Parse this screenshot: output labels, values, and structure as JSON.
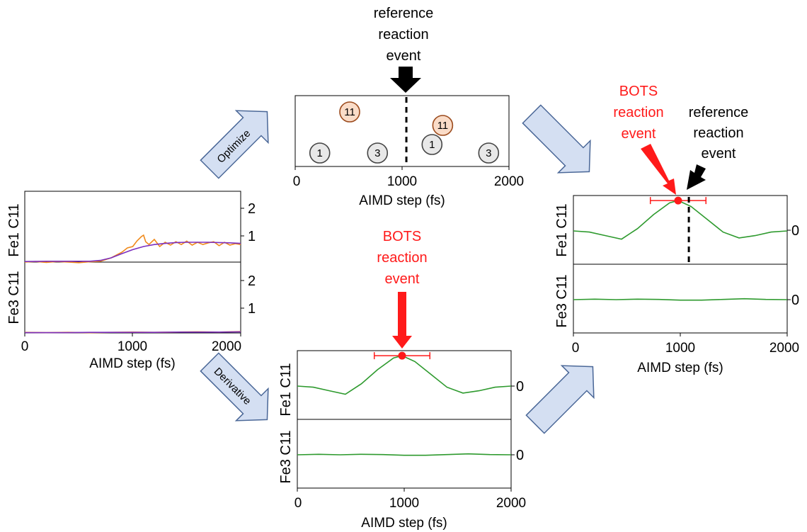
{
  "colors": {
    "orange": "#f08a1c",
    "purple": "#7b2fbe",
    "green": "#2e9a2e",
    "red": "#ff1a1a",
    "black": "#000000",
    "arrow_fill": "#d4dff2",
    "arrow_stroke": "#4a6797",
    "badge11_fill": "#fadcc8",
    "badge11_stroke": "#9b4a1c",
    "badge_fill": "#e8e8e8",
    "badge_stroke": "#444444"
  },
  "labels": {
    "reference_reaction_event": [
      "reference",
      "reaction",
      "event"
    ],
    "bots_reaction_event": [
      "BOTS",
      "reaction",
      "event"
    ],
    "optimize": "Optimize",
    "derivative": "Derivative"
  },
  "chart_data": [
    {
      "id": "input",
      "type": "line",
      "xlabel": "AIMD step (fs)",
      "xlim": [
        0,
        2000
      ],
      "xticks": [
        "0",
        "1000",
        "2000"
      ],
      "panels": [
        {
          "ylabel": "Fe1 C11",
          "yticks": [
            "2",
            "1"
          ],
          "ylim": [
            0,
            2.5
          ],
          "series": [
            {
              "color": "orange",
              "x": [
                0,
                100,
                200,
                300,
                400,
                500,
                600,
                700,
                800,
                850,
                900,
                950,
                1000,
                1040,
                1080,
                1100,
                1120,
                1150,
                1200,
                1250,
                1300,
                1350,
                1400,
                1450,
                1500,
                1550,
                1600,
                1650,
                1700,
                1750,
                1800,
                1850,
                1900,
                1950,
                2000
              ],
              "y": [
                0.0,
                0.02,
                -0.01,
                0.02,
                0.0,
                -0.02,
                0.01,
                0.03,
                0.15,
                0.25,
                0.35,
                0.5,
                0.55,
                0.75,
                0.9,
                0.95,
                0.72,
                0.62,
                0.8,
                0.55,
                0.7,
                0.6,
                0.72,
                0.62,
                0.74,
                0.6,
                0.7,
                0.62,
                0.68,
                0.72,
                0.58,
                0.7,
                0.6,
                0.65,
                0.62
              ]
            },
            {
              "color": "purple",
              "x": [
                0,
                200,
                400,
                600,
                700,
                800,
                900,
                1000,
                1100,
                1200,
                1300,
                1400,
                1500,
                1600,
                1700,
                1800,
                1900,
                2000
              ],
              "y": [
                0.02,
                0.03,
                0.03,
                0.03,
                0.06,
                0.15,
                0.3,
                0.44,
                0.55,
                0.62,
                0.66,
                0.69,
                0.7,
                0.7,
                0.7,
                0.69,
                0.68,
                0.66
              ]
            }
          ]
        },
        {
          "ylabel": "Fe3 C11",
          "yticks": [
            "2",
            "1"
          ],
          "ylim": [
            0,
            2.5
          ],
          "series": [
            {
              "color": "orange",
              "x": [
                0,
                200,
                400,
                600,
                800,
                1000,
                1200,
                1400,
                1600,
                1800,
                2000
              ],
              "y": [
                0.02,
                0.01,
                0.02,
                0.01,
                0.02,
                0.03,
                0.02,
                0.03,
                0.04,
                0.03,
                0.05
              ]
            },
            {
              "color": "purple",
              "x": [
                0,
                200,
                400,
                600,
                800,
                1000,
                1200,
                1400,
                1600,
                1800,
                2000
              ],
              "y": [
                0.01,
                0.01,
                0.01,
                0.02,
                0.02,
                0.02,
                0.02,
                0.03,
                0.03,
                0.03,
                0.04
              ]
            }
          ]
        }
      ]
    },
    {
      "id": "optimize",
      "type": "scatter",
      "xlabel": "AIMD step (fs)",
      "xlim": [
        0,
        2000
      ],
      "xticks": [
        "0",
        "1000",
        "2000"
      ],
      "reference_x": 1040,
      "badges": [
        {
          "x": 510,
          "row": "top",
          "label": "11",
          "style": "orange"
        },
        {
          "x": 1380,
          "row": "mid",
          "label": "11",
          "style": "orange"
        },
        {
          "x": 230,
          "row": "bottom",
          "label": "1",
          "style": "gray"
        },
        {
          "x": 770,
          "row": "bottom",
          "label": "3",
          "style": "gray"
        },
        {
          "x": 1280,
          "row": "lowmid",
          "label": "1",
          "style": "gray"
        },
        {
          "x": 1810,
          "row": "bottom",
          "label": "3",
          "style": "gray"
        }
      ]
    },
    {
      "id": "derivative",
      "type": "line",
      "xlabel": "AIMD step (fs)",
      "xlim": [
        0,
        2000
      ],
      "xticks": [
        "0",
        "1000",
        "2000"
      ],
      "event": {
        "x": 980,
        "err": [
          720,
          1240
        ]
      },
      "panels": [
        {
          "ylabel": "Fe1 C11",
          "ytick": "0",
          "series": [
            {
              "color": "green",
              "x": [
                0,
                150,
                300,
                450,
                600,
                750,
                900,
                980,
                1100,
                1250,
                1400,
                1550,
                1700,
                1850,
                2000
              ],
              "y": [
                0.0,
                -0.05,
                -0.2,
                -0.35,
                0.1,
                0.7,
                1.2,
                1.3,
                1.05,
                0.5,
                -0.05,
                -0.3,
                -0.2,
                -0.05,
                0.0
              ]
            }
          ]
        },
        {
          "ylabel": "Fe3 C11",
          "ytick": "0",
          "series": [
            {
              "color": "green",
              "x": [
                0,
                200,
                400,
                600,
                800,
                1000,
                1200,
                1400,
                1600,
                1800,
                2000
              ],
              "y": [
                0.0,
                0.02,
                0.0,
                0.02,
                0.01,
                -0.02,
                -0.02,
                0.01,
                0.04,
                0.01,
                0.0
              ]
            }
          ]
        }
      ]
    },
    {
      "id": "result",
      "type": "line",
      "xlabel": "AIMD step (fs)",
      "xlim": [
        0,
        2000
      ],
      "xticks": [
        "0",
        "1000",
        "2000"
      ],
      "event": {
        "x": 980,
        "err": [
          720,
          1240
        ]
      },
      "reference_x": 1080,
      "panels": [
        {
          "ylabel": "Fe1 C11",
          "ytick": "0",
          "series": [
            {
              "color": "green",
              "x": [
                0,
                150,
                300,
                450,
                600,
                750,
                900,
                980,
                1100,
                1250,
                1400,
                1550,
                1700,
                1850,
                2000
              ],
              "y": [
                0.0,
                -0.05,
                -0.2,
                -0.35,
                0.1,
                0.7,
                1.2,
                1.3,
                1.05,
                0.5,
                -0.05,
                -0.3,
                -0.2,
                -0.05,
                0.0
              ]
            }
          ]
        },
        {
          "ylabel": "Fe3 C11",
          "ytick": "0",
          "series": [
            {
              "color": "green",
              "x": [
                0,
                200,
                400,
                600,
                800,
                1000,
                1200,
                1400,
                1600,
                1800,
                2000
              ],
              "y": [
                0.0,
                0.02,
                0.0,
                0.02,
                0.01,
                -0.02,
                -0.02,
                0.01,
                0.04,
                0.01,
                0.0
              ]
            }
          ]
        }
      ]
    }
  ]
}
